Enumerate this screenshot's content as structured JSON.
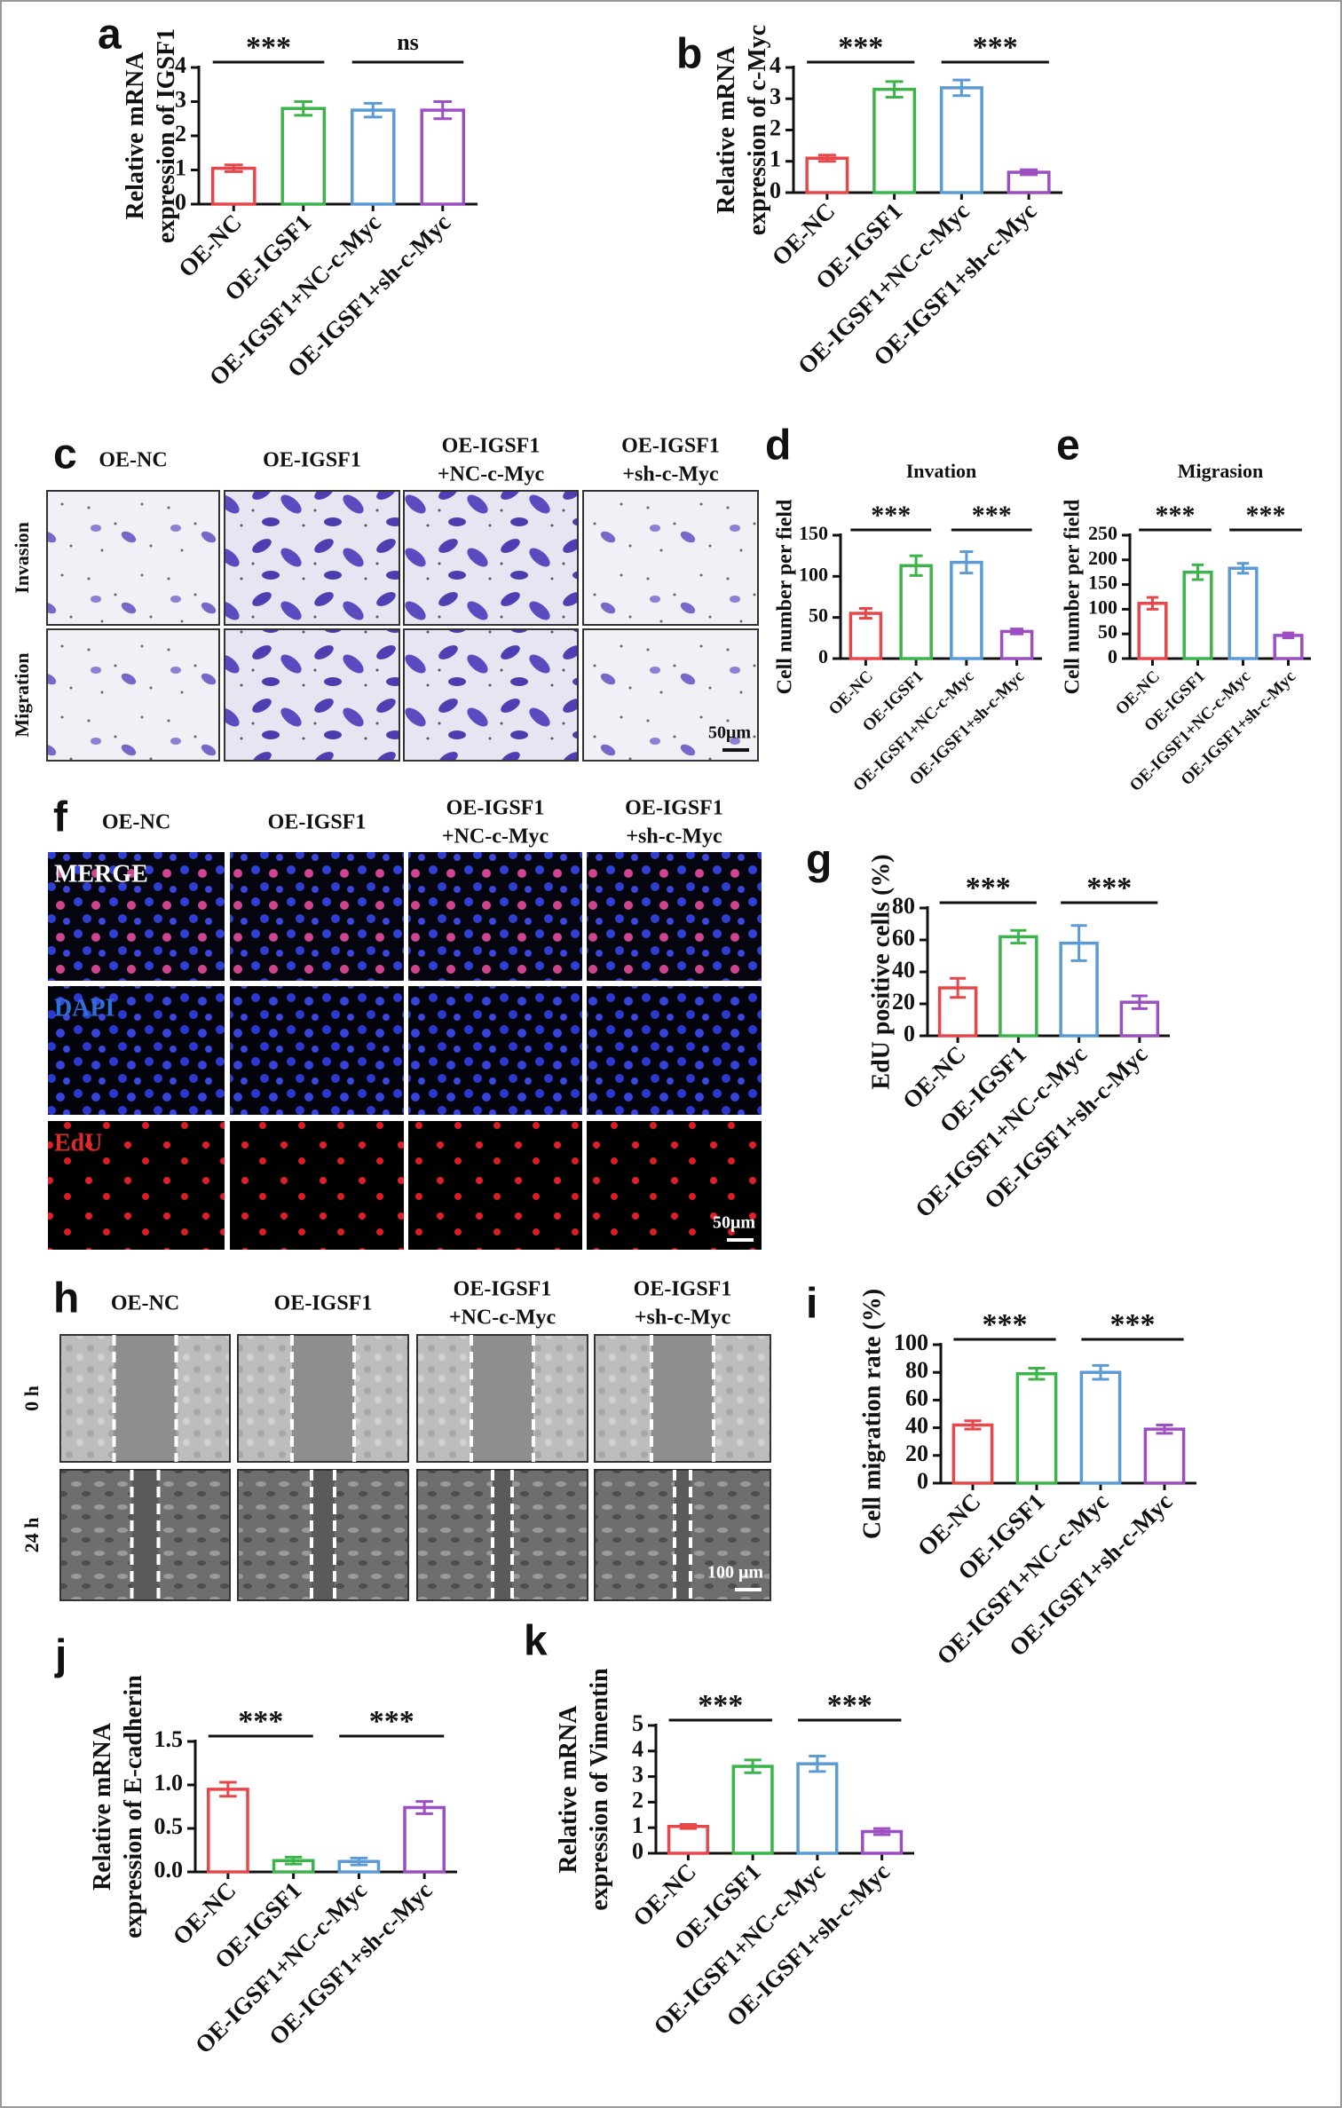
{
  "chart_data": [
    {
      "type": "bar",
      "panel": "a",
      "ylabel": [
        "Relative mRNA",
        "expression of IGSF1"
      ],
      "categories": [
        "OE-NC",
        "OE-IGSF1",
        "OE-IGSF1+NC-c-Myc",
        "OE-IGSF1+sh-c-Myc"
      ],
      "values": [
        1.05,
        2.8,
        2.75,
        2.75
      ],
      "errors": [
        0.1,
        0.2,
        0.2,
        0.25
      ],
      "colors": [
        "#e8474a",
        "#3cb44b",
        "#5b9bd5",
        "#9b4fc0"
      ],
      "ylim": [
        0,
        4
      ],
      "yticks": [
        0,
        1,
        2,
        3,
        4
      ],
      "annotations": [
        {
          "text": "***",
          "pair": [
            "OE-NC",
            "OE-IGSF1"
          ]
        },
        {
          "text": "ns",
          "pair": [
            "OE-IGSF1+NC-c-Myc",
            "OE-IGSF1+sh-c-Myc"
          ]
        }
      ]
    },
    {
      "type": "bar",
      "panel": "b",
      "ylabel": [
        "Relative mRNA",
        "expression of c-Myc"
      ],
      "categories": [
        "OE-NC",
        "OE-IGSF1",
        "OE-IGSF1+NC-c-Myc",
        "OE-IGSF1+sh-c-Myc"
      ],
      "values": [
        1.1,
        3.3,
        3.35,
        0.65
      ],
      "errors": [
        0.1,
        0.25,
        0.25,
        0.08
      ],
      "colors": [
        "#e8474a",
        "#3cb44b",
        "#5b9bd5",
        "#9b4fc0"
      ],
      "ylim": [
        0,
        4
      ],
      "yticks": [
        0,
        1,
        2,
        3,
        4
      ],
      "annotations": [
        {
          "text": "***",
          "pair": [
            "OE-NC",
            "OE-IGSF1"
          ]
        },
        {
          "text": "***",
          "pair": [
            "OE-IGSF1+NC-c-Myc",
            "OE-IGSF1+sh-c-Myc"
          ]
        }
      ]
    },
    {
      "type": "bar",
      "panel": "d",
      "title": "Invation",
      "ylabel": "Cell number per field",
      "categories": [
        "OE-NC",
        "OE-IGSF1",
        "OE-IGSF1+NC-c-Myc",
        "OE-IGSF1+sh-c-Myc"
      ],
      "values": [
        55,
        113,
        117,
        33
      ],
      "errors": [
        6,
        12,
        13,
        3
      ],
      "colors": [
        "#e8474a",
        "#3cb44b",
        "#5b9bd5",
        "#9b4fc0"
      ],
      "ylim": [
        0,
        150
      ],
      "yticks": [
        0,
        50,
        100,
        150
      ],
      "annotations": [
        {
          "text": "***",
          "pair": [
            "OE-NC",
            "OE-IGSF1"
          ]
        },
        {
          "text": "***",
          "pair": [
            "OE-IGSF1+NC-c-Myc",
            "OE-IGSF1+sh-c-Myc"
          ]
        }
      ]
    },
    {
      "type": "bar",
      "panel": "e",
      "title": "Migrasion",
      "ylabel": "Cell number per field",
      "categories": [
        "OE-NC",
        "OE-IGSF1",
        "OE-IGSF1+NC-c-Myc",
        "OE-IGSF1+sh-c-Myc"
      ],
      "values": [
        112,
        175,
        183,
        47
      ],
      "errors": [
        12,
        15,
        10,
        5
      ],
      "colors": [
        "#e8474a",
        "#3cb44b",
        "#5b9bd5",
        "#9b4fc0"
      ],
      "ylim": [
        0,
        250
      ],
      "yticks": [
        0,
        50,
        100,
        150,
        200,
        250
      ],
      "annotations": [
        {
          "text": "***",
          "pair": [
            "OE-NC",
            "OE-IGSF1"
          ]
        },
        {
          "text": "***",
          "pair": [
            "OE-IGSF1+NC-c-Myc",
            "OE-IGSF1+sh-c-Myc"
          ]
        }
      ]
    },
    {
      "type": "bar",
      "panel": "g",
      "ylabel": "EdU positive cells (%)",
      "categories": [
        "OE-NC",
        "OE-IGSF1",
        "OE-IGSF1+NC-c-Myc",
        "OE-IGSF1+sh-c-Myc"
      ],
      "values": [
        30,
        62,
        58,
        21
      ],
      "errors": [
        6,
        4,
        11,
        4
      ],
      "colors": [
        "#e8474a",
        "#3cb44b",
        "#5b9bd5",
        "#9b4fc0"
      ],
      "ylim": [
        0,
        80
      ],
      "yticks": [
        0,
        20,
        40,
        60,
        80
      ],
      "annotations": [
        {
          "text": "***",
          "pair": [
            "OE-NC",
            "OE-IGSF1"
          ]
        },
        {
          "text": "***",
          "pair": [
            "OE-IGSF1+NC-c-Myc",
            "OE-IGSF1+sh-c-Myc"
          ]
        }
      ]
    },
    {
      "type": "bar",
      "panel": "i",
      "ylabel": "Cell migration rate (%)",
      "categories": [
        "OE-NC",
        "OE-IGSF1",
        "OE-IGSF1+NC-c-Myc",
        "OE-IGSF1+sh-c-Myc"
      ],
      "values": [
        42,
        79,
        80,
        39
      ],
      "errors": [
        3,
        4,
        5,
        3
      ],
      "colors": [
        "#e8474a",
        "#3cb44b",
        "#5b9bd5",
        "#9b4fc0"
      ],
      "ylim": [
        0,
        100
      ],
      "yticks": [
        0,
        20,
        40,
        60,
        80,
        100
      ],
      "annotations": [
        {
          "text": "***",
          "pair": [
            "OE-NC",
            "OE-IGSF1"
          ]
        },
        {
          "text": "***",
          "pair": [
            "OE-IGSF1+NC-c-Myc",
            "OE-IGSF1+sh-c-Myc"
          ]
        }
      ]
    },
    {
      "type": "bar",
      "panel": "j",
      "ylabel": [
        "Relative mRNA",
        "expression of E-cadherin"
      ],
      "categories": [
        "OE-NC",
        "OE-IGSF1",
        "OE-IGSF1+NC-c-Myc",
        "OE-IGSF1+sh-c-Myc"
      ],
      "values": [
        0.95,
        0.13,
        0.12,
        0.74
      ],
      "errors": [
        0.08,
        0.04,
        0.04,
        0.07
      ],
      "colors": [
        "#e8474a",
        "#3cb44b",
        "#5b9bd5",
        "#9b4fc0"
      ],
      "ylim": [
        0,
        1.5
      ],
      "yticks": [
        {
          "value": 0,
          "label": "0.0"
        },
        0.5,
        {
          "value": 1,
          "label": "1.0"
        },
        1.5
      ],
      "annotations": [
        {
          "text": "***",
          "pair": [
            "OE-NC",
            "OE-IGSF1"
          ]
        },
        {
          "text": "***",
          "pair": [
            "OE-IGSF1+NC-c-Myc",
            "OE-IGSF1+sh-c-Myc"
          ]
        }
      ]
    },
    {
      "type": "bar",
      "panel": "k",
      "ylabel": [
        "Relative mRNA",
        "expression of Vimentin"
      ],
      "categories": [
        "OE-NC",
        "OE-IGSF1",
        "OE-IGSF1+NC-c-Myc",
        "OE-IGSF1+sh-c-Myc"
      ],
      "values": [
        1.05,
        3.4,
        3.5,
        0.85
      ],
      "errors": [
        0.08,
        0.25,
        0.3,
        0.12
      ],
      "colors": [
        "#e8474a",
        "#3cb44b",
        "#5b9bd5",
        "#9b4fc0"
      ],
      "ylim": [
        0,
        5
      ],
      "yticks": [
        0,
        1,
        2,
        3,
        4,
        5
      ],
      "annotations": [
        {
          "text": "***",
          "pair": [
            "OE-NC",
            "OE-IGSF1"
          ]
        },
        {
          "text": "***",
          "pair": [
            "OE-IGSF1+NC-c-Myc",
            "OE-IGSF1+sh-c-Myc"
          ]
        }
      ]
    }
  ],
  "image_panels": [
    {
      "panel": "c",
      "columns": [
        [
          "OE-NC"
        ],
        [
          "OE-IGSF1"
        ],
        [
          "OE-IGSF1",
          "+NC-c-Myc"
        ],
        [
          "OE-IGSF1",
          "+sh-c-Myc"
        ]
      ],
      "rows": [
        "Invasion",
        "Migration"
      ],
      "scale_bar": "50μm"
    },
    {
      "panel": "f",
      "columns": [
        [
          "OE-NC"
        ],
        [
          "OE-IGSF1"
        ],
        [
          "OE-IGSF1",
          "+NC-c-Myc"
        ],
        [
          "OE-IGSF1",
          "+sh-c-Myc"
        ]
      ],
      "rows": [
        "MERGE",
        "DAPI",
        "EdU"
      ],
      "scale_bar": "50μm"
    },
    {
      "panel": "h",
      "columns": [
        [
          "OE-NC"
        ],
        [
          "OE-IGSF1"
        ],
        [
          "OE-IGSF1",
          "+NC-c-Myc"
        ],
        [
          "OE-IGSF1",
          "+sh-c-Myc"
        ]
      ],
      "rows": [
        "0 h",
        "24 h"
      ],
      "scale_bar": "100 μm"
    }
  ]
}
